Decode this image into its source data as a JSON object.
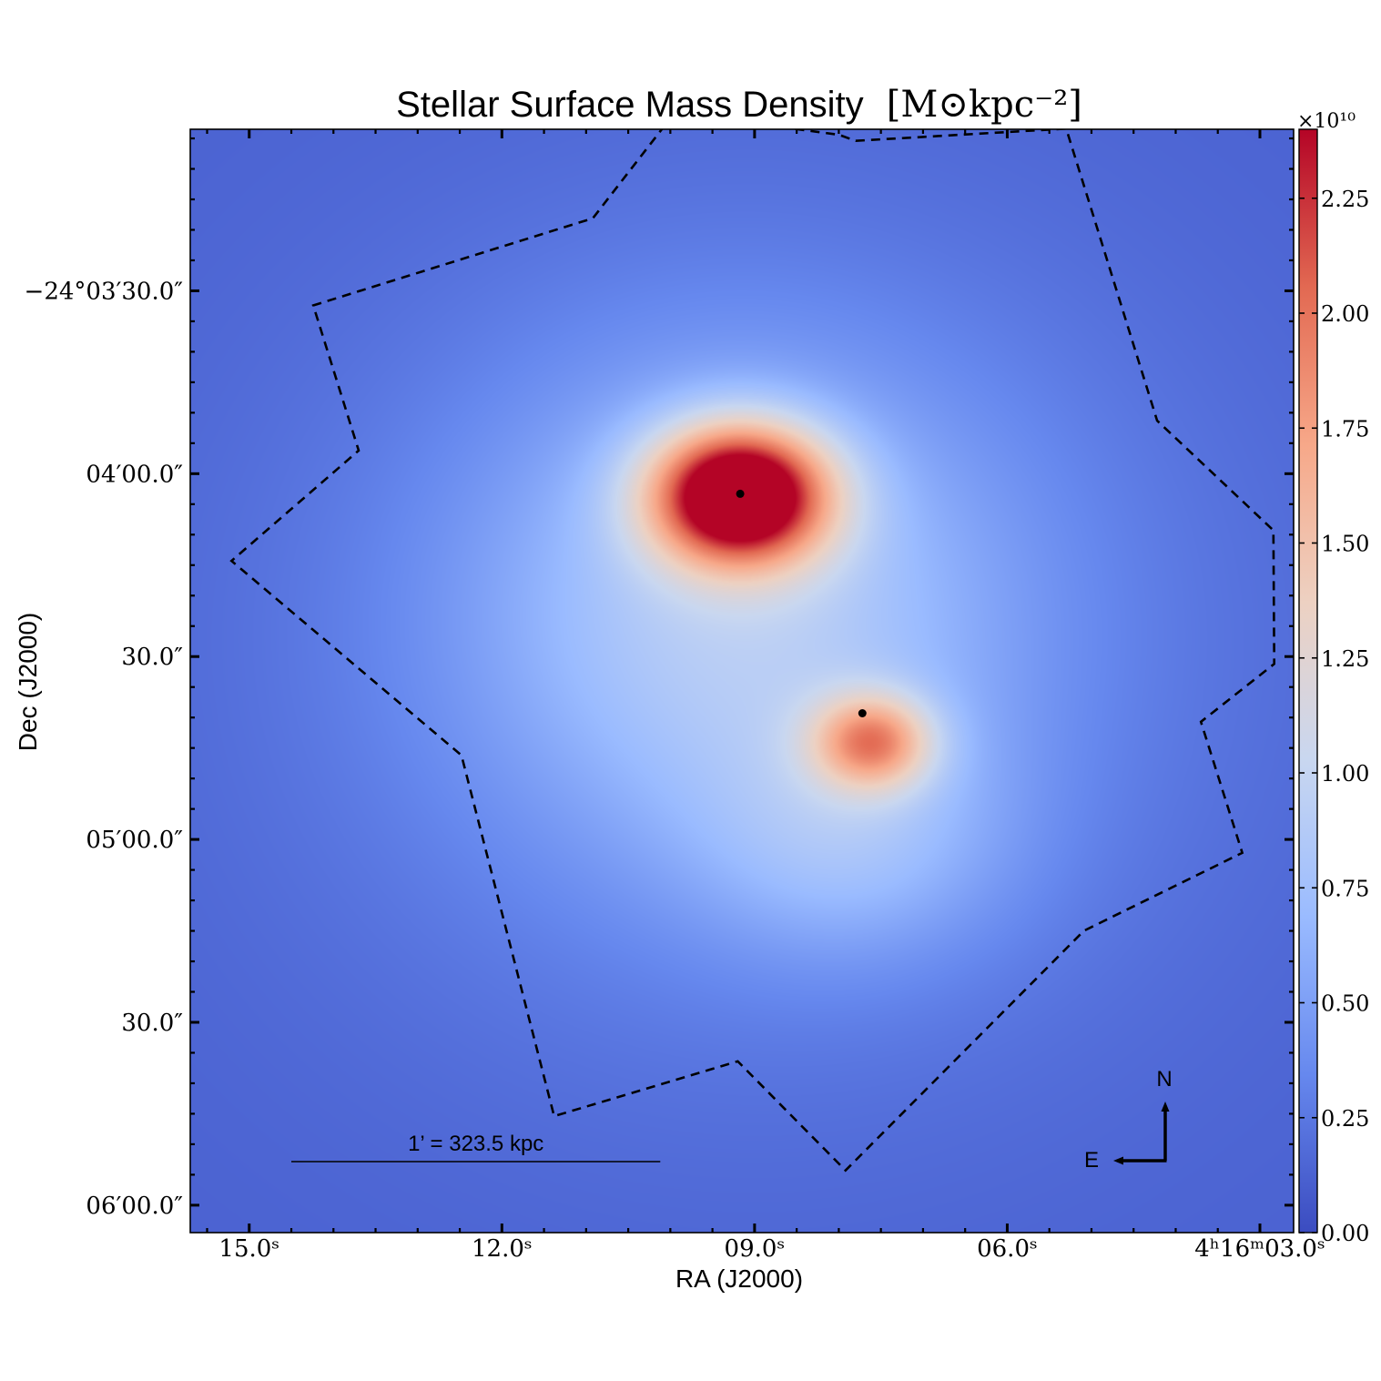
{
  "chart_data": {
    "type": "heatmap",
    "title_main": "Stellar Surface Mass Density",
    "title_unit": "[M⊙kpc⁻²]",
    "xlabel": "RA (J2000)",
    "ylabel": "Dec (J2000)",
    "x_tick_labels": [
      "15.0ˢ",
      "12.0ˢ",
      "09.0ˢ",
      "06.0ˢ",
      "4ʰ16ᵐ03.0ˢ"
    ],
    "x_tick_seconds": [
      15.0,
      12.0,
      9.0,
      6.0,
      3.0
    ],
    "x_range_seconds": [
      15.7,
      2.6
    ],
    "y_tick_labels": [
      "−24°03′30.0″",
      "04′00.0″",
      "30.0″",
      "05′00.0″",
      "30.0″",
      "06′00.0″"
    ],
    "y_tick_arcsec": [
      -30,
      0,
      30,
      60,
      90,
      120
    ],
    "y_range_arcsec": [
      -56.5,
      124.5
    ],
    "colorbar": {
      "multiplier": "×10¹⁰",
      "tick_labels": [
        "0.00",
        "0.25",
        "0.50",
        "0.75",
        "1.00",
        "1.25",
        "1.50",
        "1.75",
        "2.00",
        "2.25"
      ],
      "ticks": [
        0.0,
        0.25,
        0.5,
        0.75,
        1.0,
        1.25,
        1.5,
        1.75,
        2.0,
        2.25
      ],
      "range": [
        0.0,
        2.4
      ],
      "colormap": "coolwarm",
      "colormap_stops": [
        "#3b4cc0",
        "#6688ee",
        "#9abbff",
        "#c9d7f0",
        "#edd1c2",
        "#f7a889",
        "#e26952",
        "#b40426"
      ]
    },
    "components": [
      {
        "ra_s": 9.17,
        "dec_arcsec": 3.5,
        "peak": 2.4,
        "sigma_ra_s": 0.75,
        "sigma_dec_arcsec": 8.0
      },
      {
        "ra_s": 7.6,
        "dec_arcsec": 44.0,
        "peak": 1.2,
        "sigma_ra_s": 0.5,
        "sigma_dec_arcsec": 5.5
      },
      {
        "ra_s": 9.2,
        "dec_arcsec": 22.0,
        "peak": 0.55,
        "sigma_ra_s": 2.2,
        "sigma_dec_arcsec": 28.0
      },
      {
        "ra_s": 7.8,
        "dec_arcsec": 60.0,
        "peak": 0.35,
        "sigma_ra_s": 1.3,
        "sigma_dec_arcsec": 14.0
      },
      {
        "ra_s": 9.0,
        "dec_arcsec": 30.0,
        "peak": 0.25,
        "sigma_ra_s": 4.0,
        "sigma_dec_arcsec": 50.0
      }
    ],
    "markers": [
      {
        "ra_s": 9.17,
        "dec_arcsec": 3.3
      },
      {
        "ra_s": 7.72,
        "dec_arcsec": 39.3
      }
    ],
    "footprint_ra_dec": [
      [
        9.95,
        -59.2
      ],
      [
        10.92,
        -41.9
      ],
      [
        14.24,
        -27.6
      ],
      [
        13.7,
        -3.8
      ],
      [
        15.21,
        14.3
      ],
      [
        12.48,
        46.2
      ],
      [
        11.38,
        105.4
      ],
      [
        9.2,
        96.4
      ],
      [
        7.92,
        114.3
      ],
      [
        5.09,
        75.0
      ],
      [
        3.21,
        62.2
      ],
      [
        3.7,
        40.7
      ],
      [
        2.83,
        31.2
      ],
      [
        2.84,
        9.3
      ],
      [
        4.22,
        -8.7
      ],
      [
        5.3,
        -56.6
      ],
      [
        7.8,
        -54.6
      ],
      [
        8.0,
        -55.6
      ]
    ],
    "scalebar_label": "1’ = 323.5 kpc",
    "scalebar_ra_start": 14.5,
    "scalebar_arcmin": 1.0,
    "compass_labels": {
      "north": "N",
      "east": "E"
    }
  }
}
